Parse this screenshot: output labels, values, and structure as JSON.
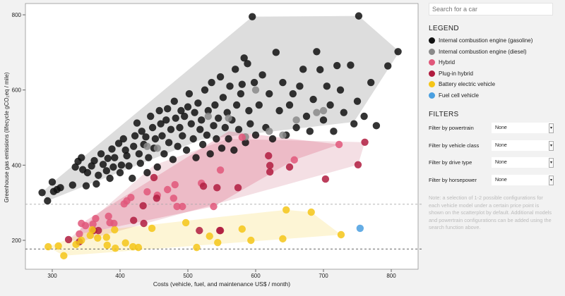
{
  "sidebar": {
    "search_placeholder": "Search for a car",
    "legend_title": "LEGEND",
    "legend": [
      {
        "label": "Internal combustion engine (gasoline)",
        "color": "#111111"
      },
      {
        "label": "Internal combustion engine (diesel)",
        "color": "#8a8a8a"
      },
      {
        "label": "Hybrid",
        "color": "#e0577a"
      },
      {
        "label": "Plug-in hybrid",
        "color": "#b01c3f"
      },
      {
        "label": "Battery electric vehicle",
        "color": "#f5c518"
      },
      {
        "label": "Fuel cell vehicle",
        "color": "#4a9fe0"
      }
    ],
    "filters_title": "FILTERS",
    "filters": [
      {
        "label": "Filter by powertrain",
        "value": "None"
      },
      {
        "label": "Filter by vehicle class",
        "value": "None"
      },
      {
        "label": "Filter by drive type",
        "value": "None"
      },
      {
        "label": "Filter by horsepower",
        "value": "None"
      }
    ],
    "note": "Note: a selection of 1-2 possible configurations for each vehicle model under a certain price point is shown on the scatterplot by default. Additional models and powertrain configurations can be added using the search function above."
  },
  "chart_data": {
    "type": "scatter",
    "xlabel": "Costs (vehicle, fuel, and maintenance US$ / month)",
    "ylabel": "Greenhouse gas emissions (lifecycle gCO₂eq / mile)",
    "xlim": [
      260,
      844
    ],
    "ylim": [
      123,
      830
    ],
    "xticks": [
      300,
      400,
      500,
      600,
      700,
      800
    ],
    "yticks": [
      200,
      400,
      600,
      800
    ],
    "reference_lines": [
      296,
      177
    ],
    "series": [
      {
        "name": "Internal combustion engine (gasoline)",
        "color": "#111111",
        "hull": [
          [
            285,
            327
          ],
          [
            293,
            305
          ],
          [
            520,
            468
          ],
          [
            745,
            515
          ],
          [
            812,
            702
          ],
          [
            752,
            797
          ],
          [
            595,
            795
          ],
          [
            302,
            356
          ]
        ],
        "points": [
          [
            285,
            327
          ],
          [
            293,
            305
          ],
          [
            300,
            355
          ],
          [
            302,
            330
          ],
          [
            307,
            335
          ],
          [
            312,
            340
          ],
          [
            330,
            347
          ],
          [
            334,
            395
          ],
          [
            338,
            410
          ],
          [
            343,
            420
          ],
          [
            345,
            388
          ],
          [
            350,
            345
          ],
          [
            352,
            380
          ],
          [
            358,
            398
          ],
          [
            362,
            412
          ],
          [
            365,
            350
          ],
          [
            368,
            373
          ],
          [
            372,
            430
          ],
          [
            375,
            402
          ],
          [
            380,
            385
          ],
          [
            382,
            418
          ],
          [
            385,
            365
          ],
          [
            388,
            443
          ],
          [
            390,
            395
          ],
          [
            392,
            420
          ],
          [
            398,
            458
          ],
          [
            400,
            380
          ],
          [
            402,
            400
          ],
          [
            405,
            470
          ],
          [
            408,
            440
          ],
          [
            410,
            425
          ],
          [
            413,
            398
          ],
          [
            418,
            365
          ],
          [
            420,
            450
          ],
          [
            422,
            478
          ],
          [
            425,
            512
          ],
          [
            428,
            430
          ],
          [
            430,
            405
          ],
          [
            432,
            490
          ],
          [
            435,
            455
          ],
          [
            438,
            475
          ],
          [
            440,
            380
          ],
          [
            442,
            420
          ],
          [
            445,
            530
          ],
          [
            448,
            500
          ],
          [
            450,
            445
          ],
          [
            452,
            470
          ],
          [
            455,
            395
          ],
          [
            458,
            545
          ],
          [
            460,
            510
          ],
          [
            462,
            478
          ],
          [
            465,
            430
          ],
          [
            468,
            520
          ],
          [
            470,
            550
          ],
          [
            472,
            460
          ],
          [
            475,
            495
          ],
          [
            478,
            415
          ],
          [
            480,
            570
          ],
          [
            482,
            525
          ],
          [
            485,
            450
          ],
          [
            488,
            500
          ],
          [
            490,
            545
          ],
          [
            492,
            478
          ],
          [
            495,
            530
          ],
          [
            498,
            440
          ],
          [
            500,
            555
          ],
          [
            502,
            590
          ],
          [
            505,
            510
          ],
          [
            508,
            470
          ],
          [
            510,
            540
          ],
          [
            512,
            420
          ],
          [
            515,
            565
          ],
          [
            518,
            495
          ],
          [
            520,
            520
          ],
          [
            522,
            455
          ],
          [
            525,
            600
          ],
          [
            528,
            480
          ],
          [
            530,
            545
          ],
          [
            533,
            430
          ],
          [
            535,
            620
          ],
          [
            538,
            505
          ],
          [
            540,
            560
          ],
          [
            542,
            470
          ],
          [
            545,
            525
          ],
          [
            548,
            635
          ],
          [
            550,
            445
          ],
          [
            552,
            580
          ],
          [
            555,
            500
          ],
          [
            558,
            540
          ],
          [
            560,
            470
          ],
          [
            562,
            610
          ],
          [
            565,
            520
          ],
          [
            568,
            440
          ],
          [
            570,
            655
          ],
          [
            572,
            560
          ],
          [
            575,
            495
          ],
          [
            578,
            590
          ],
          [
            580,
            615
          ],
          [
            583,
            685
          ],
          [
            585,
            460
          ],
          [
            588,
            670
          ],
          [
            590,
            545
          ],
          [
            592,
            510
          ],
          [
            595,
            795
          ],
          [
            598,
            620
          ],
          [
            600,
            480
          ],
          [
            605,
            560
          ],
          [
            610,
            640
          ],
          [
            615,
            500
          ],
          [
            620,
            590
          ],
          [
            625,
            470
          ],
          [
            630,
            700
          ],
          [
            635,
            545
          ],
          [
            640,
            620
          ],
          [
            645,
            480
          ],
          [
            650,
            560
          ],
          [
            655,
            590
          ],
          [
            660,
            500
          ],
          [
            665,
            610
          ],
          [
            670,
            655
          ],
          [
            675,
            530
          ],
          [
            680,
            490
          ],
          [
            685,
            575
          ],
          [
            690,
            702
          ],
          [
            695,
            654
          ],
          [
            700,
            520
          ],
          [
            705,
            610
          ],
          [
            710,
            560
          ],
          [
            715,
            490
          ],
          [
            720,
            665
          ],
          [
            725,
            600
          ],
          [
            730,
            540
          ],
          [
            740,
            666
          ],
          [
            745,
            510
          ],
          [
            750,
            570
          ],
          [
            752,
            797
          ],
          [
            760,
            530
          ],
          [
            770,
            620
          ],
          [
            778,
            505
          ],
          [
            795,
            664
          ],
          [
            810,
            702
          ]
        ]
      },
      {
        "name": "Internal combustion engine (diesel)",
        "color": "#8a8a8a",
        "hull": [],
        "points": [
          [
            440,
            450
          ],
          [
            455,
            445
          ],
          [
            530,
            530
          ],
          [
            560,
            525
          ],
          [
            585,
            475
          ],
          [
            600,
            600
          ],
          [
            620,
            490
          ],
          [
            640,
            480
          ],
          [
            660,
            520
          ],
          [
            690,
            540
          ],
          [
            700,
            545
          ]
        ]
      },
      {
        "name": "Hybrid",
        "color": "#e0577a",
        "hull": [
          [
            340,
            217
          ],
          [
            343,
            245
          ],
          [
            560,
            490
          ],
          [
            723,
            455
          ],
          [
            657,
            414
          ],
          [
            538,
            290
          ],
          [
            384,
            232
          ]
        ],
        "points": [
          [
            340,
            217
          ],
          [
            343,
            245
          ],
          [
            349,
            239
          ],
          [
            360,
            243
          ],
          [
            364,
            258
          ],
          [
            383,
            264
          ],
          [
            385,
            247
          ],
          [
            391,
            245
          ],
          [
            406,
            297
          ],
          [
            410,
            305
          ],
          [
            416,
            314
          ],
          [
            440,
            329
          ],
          [
            455,
            320
          ],
          [
            470,
            335
          ],
          [
            479,
            312
          ],
          [
            481,
            348
          ],
          [
            484,
            290
          ],
          [
            492,
            290
          ],
          [
            520,
            352
          ],
          [
            538,
            290
          ],
          [
            548,
            387
          ],
          [
            580,
            474
          ],
          [
            657,
            414
          ],
          [
            723,
            455
          ]
        ]
      },
      {
        "name": "Plug-in hybrid",
        "color": "#b01c3f",
        "hull": [
          [
            324,
            202
          ],
          [
            340,
            196
          ],
          [
            751,
            401
          ],
          [
            761,
            461
          ],
          [
            560,
            470
          ],
          [
            450,
            400
          ]
        ],
        "points": [
          [
            324,
            202
          ],
          [
            340,
            196
          ],
          [
            361,
            226
          ],
          [
            368,
            226
          ],
          [
            420,
            253
          ],
          [
            434,
            292
          ],
          [
            435,
            245
          ],
          [
            450,
            367
          ],
          [
            454,
            312
          ],
          [
            517,
            226
          ],
          [
            523,
            344
          ],
          [
            543,
            340
          ],
          [
            547,
            226
          ],
          [
            548,
            226
          ],
          [
            574,
            340
          ],
          [
            619,
            425
          ],
          [
            621,
            399
          ],
          [
            621,
            382
          ],
          [
            650,
            395
          ],
          [
            703,
            363
          ],
          [
            751,
            401
          ],
          [
            761,
            461
          ]
        ]
      },
      {
        "name": "Battery electric vehicle",
        "color": "#f5c518",
        "hull": [
          [
            294,
            183
          ],
          [
            317,
            159
          ],
          [
            726,
            215
          ],
          [
            682,
            275
          ],
          [
            645,
            281
          ],
          [
            547,
            262
          ],
          [
            400,
            232
          ],
          [
            359,
            228
          ]
        ],
        "points": [
          [
            294,
            183
          ],
          [
            309,
            185
          ],
          [
            317,
            159
          ],
          [
            335,
            189
          ],
          [
            343,
            200
          ],
          [
            356,
            213
          ],
          [
            359,
            228
          ],
          [
            367,
            206
          ],
          [
            380,
            208
          ],
          [
            381,
            187
          ],
          [
            392,
            228
          ],
          [
            393,
            179
          ],
          [
            408,
            193
          ],
          [
            419,
            183
          ],
          [
            427,
            181
          ],
          [
            447,
            232
          ],
          [
            497,
            247
          ],
          [
            513,
            181
          ],
          [
            532,
            211
          ],
          [
            544,
            194
          ],
          [
            580,
            230
          ],
          [
            593,
            200
          ],
          [
            640,
            204
          ],
          [
            645,
            281
          ],
          [
            682,
            275
          ],
          [
            726,
            215
          ]
        ]
      },
      {
        "name": "Fuel cell vehicle",
        "color": "#4a9fe0",
        "hull": [],
        "points": [
          [
            754,
            232
          ]
        ]
      }
    ]
  }
}
